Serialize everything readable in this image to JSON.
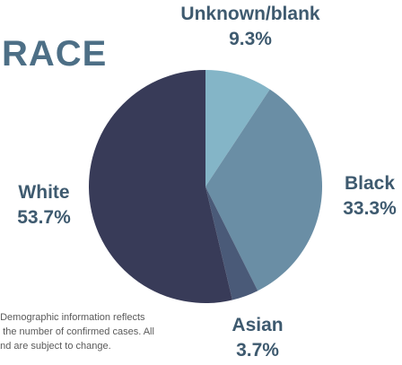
{
  "chart_data": {
    "type": "pie",
    "title": "RACE",
    "slices": [
      {
        "label": "Unknown/blank",
        "value": 9.3,
        "display": "9.3%",
        "color": "#84b5c7"
      },
      {
        "label": "Black",
        "value": 33.3,
        "display": "33.3%",
        "color": "#6a8ea5"
      },
      {
        "label": "Asian",
        "value": 3.7,
        "display": "3.7%",
        "color": "#4a5a78"
      },
      {
        "label": "White",
        "value": 53.7,
        "display": "53.7%",
        "color": "#383b58"
      }
    ],
    "footnote": [
      ". Demographic information reflects",
      "n the number of confirmed cases. All",
      "and are subject to change."
    ]
  }
}
